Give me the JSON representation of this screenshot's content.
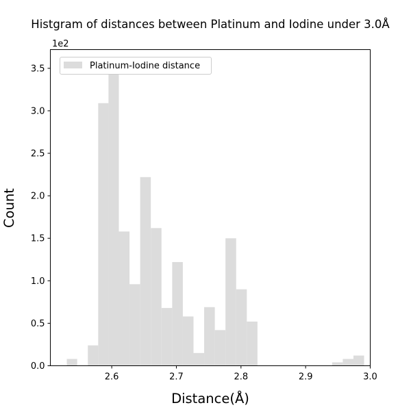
{
  "chart_data": {
    "type": "bar",
    "title": "Histgram of distances between Platinum and Iodine under 3.0Å",
    "xlabel": "Distance(Å)",
    "ylabel": "Count",
    "y_offset_label": "1e2",
    "xlim": [
      2.505,
      3.0
    ],
    "ylim": [
      0,
      372
    ],
    "x_ticks": [
      2.6,
      2.7,
      2.8,
      2.9,
      3.0
    ],
    "x_tick_labels": [
      "2.6",
      "2.7",
      "2.8",
      "2.9",
      "3.0"
    ],
    "y_ticks": [
      0,
      50,
      100,
      150,
      200,
      250,
      300,
      350
    ],
    "y_tick_labels": [
      "0.0",
      "0.5",
      "1.0",
      "1.5",
      "2.0",
      "2.5",
      "3.0",
      "3.5"
    ],
    "legend": {
      "position": "top-left",
      "entries": [
        "Platinum-Iodine distance"
      ]
    },
    "grid": false,
    "bar_color": "#dcdcdc",
    "bins": [
      {
        "x0": 2.5305,
        "x1": 2.5465,
        "count": 8
      },
      {
        "x0": 2.563,
        "x1": 2.579,
        "count": 24
      },
      {
        "x0": 2.579,
        "x1": 2.595,
        "count": 309
      },
      {
        "x0": 2.595,
        "x1": 2.611,
        "count": 350
      },
      {
        "x0": 2.611,
        "x1": 2.6275,
        "count": 158
      },
      {
        "x0": 2.6275,
        "x1": 2.644,
        "count": 96
      },
      {
        "x0": 2.644,
        "x1": 2.6605,
        "count": 222
      },
      {
        "x0": 2.6605,
        "x1": 2.677,
        "count": 162
      },
      {
        "x0": 2.677,
        "x1": 2.6935,
        "count": 68
      },
      {
        "x0": 2.6935,
        "x1": 2.71,
        "count": 122
      },
      {
        "x0": 2.71,
        "x1": 2.7265,
        "count": 58
      },
      {
        "x0": 2.7265,
        "x1": 2.743,
        "count": 15
      },
      {
        "x0": 2.743,
        "x1": 2.7595,
        "count": 69
      },
      {
        "x0": 2.7595,
        "x1": 2.776,
        "count": 42
      },
      {
        "x0": 2.776,
        "x1": 2.7925,
        "count": 150
      },
      {
        "x0": 2.7925,
        "x1": 2.809,
        "count": 90
      },
      {
        "x0": 2.809,
        "x1": 2.8255,
        "count": 52
      },
      {
        "x0": 2.941,
        "x1": 2.9575,
        "count": 4
      },
      {
        "x0": 2.9575,
        "x1": 2.974,
        "count": 8
      },
      {
        "x0": 2.974,
        "x1": 2.9905,
        "count": 12
      }
    ]
  }
}
